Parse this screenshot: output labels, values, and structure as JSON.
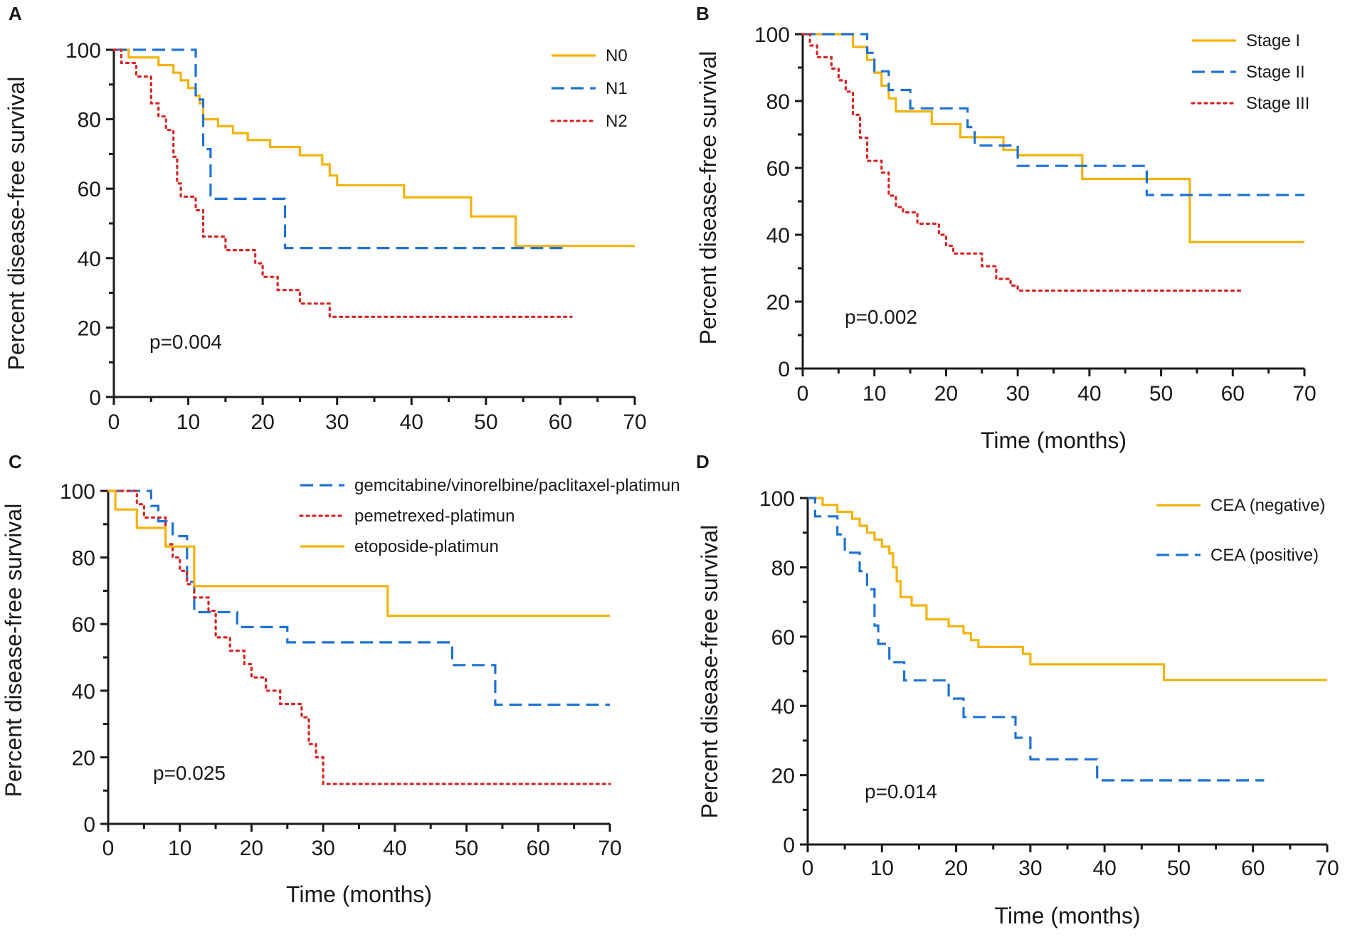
{
  "figure": {
    "panel_letters": [
      "A",
      "B",
      "C",
      "D"
    ]
  },
  "colors": {
    "yellow": "#f5b30a",
    "blue": "#1f73d6",
    "red": "#d92323",
    "axis": "#1a1a1a"
  },
  "chart_data": [
    {
      "panel": "A",
      "type": "line",
      "subtype": "kaplan-meier step",
      "title": "",
      "xlabel": "",
      "ylabel": "Percent disease-free survival",
      "xlim": [
        0,
        70
      ],
      "ylim": [
        0,
        100
      ],
      "xticks": [
        "0",
        "10",
        "20",
        "30",
        "40",
        "50",
        "60",
        "70"
      ],
      "yticks": [
        "0",
        "20",
        "40",
        "60",
        "80",
        "100"
      ],
      "legend_position": "top-right",
      "annotation": "p=0.004",
      "series": [
        {
          "name": "N0",
          "color": "#f5b30a",
          "style": "solid",
          "points": [
            [
              0,
              100
            ],
            [
              2,
              97.8
            ],
            [
              6,
              95.6
            ],
            [
              8,
              93.4
            ],
            [
              9,
              91.2
            ],
            [
              10,
              89
            ],
            [
              11,
              86.8
            ],
            [
              11.5,
              84.6
            ],
            [
              12,
              80
            ],
            [
              14,
              78
            ],
            [
              16,
              76
            ],
            [
              18,
              74
            ],
            [
              21,
              72
            ],
            [
              25,
              69.6
            ],
            [
              28,
              67
            ],
            [
              29,
              63.8
            ],
            [
              30,
              61
            ],
            [
              39,
              57.5
            ],
            [
              48,
              52
            ],
            [
              54,
              43.5
            ],
            [
              70,
              43.5
            ]
          ]
        },
        {
          "name": "N1",
          "color": "#1f73d6",
          "style": "dashed",
          "points": [
            [
              0,
              100
            ],
            [
              10,
              100
            ],
            [
              11,
              85.7
            ],
            [
              12,
              71.4
            ],
            [
              13,
              57.1
            ],
            [
              23,
              42.9
            ],
            [
              61,
              42.9
            ]
          ]
        },
        {
          "name": "N2",
          "color": "#d92323",
          "style": "dotted",
          "points": [
            [
              0,
              100
            ],
            [
              1,
              96.2
            ],
            [
              3,
              92.3
            ],
            [
              5,
              84.6
            ],
            [
              6,
              80.8
            ],
            [
              7,
              76.9
            ],
            [
              8,
              69.2
            ],
            [
              8.5,
              61.5
            ],
            [
              9,
              57.7
            ],
            [
              11,
              53.8
            ],
            [
              12,
              46.2
            ],
            [
              15,
              42.3
            ],
            [
              19,
              38.5
            ],
            [
              20,
              34.6
            ],
            [
              22,
              30.8
            ],
            [
              25,
              26.9
            ],
            [
              29,
              23.1
            ],
            [
              61.5,
              23.1
            ]
          ]
        }
      ]
    },
    {
      "panel": "B",
      "type": "line",
      "subtype": "kaplan-meier step",
      "title": "",
      "xlabel": "Time (months)",
      "ylabel": "Percent disease-free survival",
      "xlim": [
        0,
        70
      ],
      "ylim": [
        0,
        100
      ],
      "xticks": [
        "0",
        "10",
        "20",
        "30",
        "40",
        "50",
        "60",
        "70"
      ],
      "yticks": [
        "0",
        "20",
        "40",
        "60",
        "80",
        "100"
      ],
      "legend_position": "top-right",
      "annotation": "p=0.002",
      "series": [
        {
          "name": "Stage I",
          "color": "#f5b30a",
          "style": "solid",
          "points": [
            [
              0,
              100
            ],
            [
              7,
              96.2
            ],
            [
              9,
              92.3
            ],
            [
              10,
              88.5
            ],
            [
              11,
              84.6
            ],
            [
              12,
              80.8
            ],
            [
              13,
              76.9
            ],
            [
              18,
              73.1
            ],
            [
              22,
              69.2
            ],
            [
              28,
              65.4
            ],
            [
              30,
              63.8
            ],
            [
              39,
              56.7
            ],
            [
              54,
              37.8
            ],
            [
              70,
              37.8
            ]
          ]
        },
        {
          "name": "Stage II",
          "color": "#1f73d6",
          "style": "dashed",
          "points": [
            [
              0,
              100
            ],
            [
              9,
              94.4
            ],
            [
              10,
              88.9
            ],
            [
              12,
              83.3
            ],
            [
              15,
              77.8
            ],
            [
              23,
              72.2
            ],
            [
              24,
              66.7
            ],
            [
              30,
              60.6
            ],
            [
              48,
              51.9
            ],
            [
              70,
              51.9
            ]
          ]
        },
        {
          "name": "Stage III",
          "color": "#d92323",
          "style": "dotted",
          "points": [
            [
              0,
              100
            ],
            [
              1,
              96.6
            ],
            [
              2,
              93.1
            ],
            [
              4,
              89.7
            ],
            [
              5,
              86.2
            ],
            [
              6,
              82.8
            ],
            [
              7,
              75.9
            ],
            [
              8,
              69
            ],
            [
              9,
              62.1
            ],
            [
              11,
              58.6
            ],
            [
              12,
              51.7
            ],
            [
              13,
              48.3
            ],
            [
              14,
              46.7
            ],
            [
              16,
              43.3
            ],
            [
              19,
              40
            ],
            [
              20,
              36.7
            ],
            [
              21,
              34.4
            ],
            [
              25,
              30.6
            ],
            [
              27,
              26.8
            ],
            [
              29,
              24.8
            ],
            [
              30,
              23.3
            ],
            [
              61.5,
              23.3
            ]
          ]
        }
      ]
    },
    {
      "panel": "C",
      "type": "line",
      "subtype": "kaplan-meier step",
      "title": "",
      "xlabel": "Time (months)",
      "ylabel": "Percent disease-free survival",
      "xlim": [
        0,
        70
      ],
      "ylim": [
        0,
        100
      ],
      "xticks": [
        "0",
        "10",
        "20",
        "30",
        "40",
        "50",
        "60",
        "70"
      ],
      "yticks": [
        "0",
        "20",
        "40",
        "60",
        "80",
        "100"
      ],
      "legend_position": "top-right",
      "annotation": "p=0.025",
      "series": [
        {
          "name": "gemcitabine/vinorelbine/paclitaxel-platimun",
          "color": "#1f73d6",
          "style": "dashed",
          "points": [
            [
              0,
              100
            ],
            [
              6,
              95.5
            ],
            [
              7,
              90.9
            ],
            [
              9,
              86.4
            ],
            [
              11,
              72.7
            ],
            [
              12,
              63.6
            ],
            [
              18,
              59.1
            ],
            [
              25,
              54.5
            ],
            [
              48,
              47.7
            ],
            [
              54,
              35.8
            ],
            [
              70,
              35.8
            ]
          ]
        },
        {
          "name": "pemetrexed-platimun",
          "color": "#d92323",
          "style": "dotted",
          "points": [
            [
              0,
              100
            ],
            [
              4,
              96
            ],
            [
              5,
              92
            ],
            [
              8,
              84
            ],
            [
              9,
              80
            ],
            [
              10,
              76
            ],
            [
              11,
              72
            ],
            [
              12,
              68
            ],
            [
              14,
              64
            ],
            [
              15,
              56
            ],
            [
              17,
              52
            ],
            [
              19,
              48
            ],
            [
              20,
              44
            ],
            [
              22,
              40
            ],
            [
              24,
              36
            ],
            [
              27,
              32
            ],
            [
              28,
              24
            ],
            [
              29,
              20
            ],
            [
              30,
              12
            ],
            [
              70,
              12
            ]
          ]
        },
        {
          "name": "etoposide-platimun",
          "color": "#f5b30a",
          "style": "solid",
          "points": [
            [
              0,
              100
            ],
            [
              1,
              94.4
            ],
            [
              4,
              88.9
            ],
            [
              8,
              83.3
            ],
            [
              12,
              71.4
            ],
            [
              39,
              62.5
            ],
            [
              70,
              62.5
            ]
          ]
        }
      ]
    },
    {
      "panel": "D",
      "type": "line",
      "subtype": "kaplan-meier step",
      "title": "",
      "xlabel": "Time (months)",
      "ylabel": "Percent disease-free survival",
      "xlim": [
        0,
        70
      ],
      "ylim": [
        0,
        100
      ],
      "xticks": [
        "0",
        "10",
        "20",
        "30",
        "40",
        "50",
        "60",
        "70"
      ],
      "yticks": [
        "0",
        "20",
        "40",
        "60",
        "80",
        "100"
      ],
      "legend_position": "top-right",
      "annotation": "p=0.014",
      "series": [
        {
          "name": "CEA (negative)",
          "color": "#f5b30a",
          "style": "solid",
          "points": [
            [
              0,
              100
            ],
            [
              2,
              98
            ],
            [
              4,
              96
            ],
            [
              6,
              94
            ],
            [
              7,
              92
            ],
            [
              8,
              90
            ],
            [
              9,
              88
            ],
            [
              10,
              86
            ],
            [
              11,
              84
            ],
            [
              11.5,
              80
            ],
            [
              12,
              76
            ],
            [
              12.5,
              71.4
            ],
            [
              14,
              69
            ],
            [
              16,
              65
            ],
            [
              19,
              63
            ],
            [
              21,
              61
            ],
            [
              22,
              59
            ],
            [
              23,
              57
            ],
            [
              29,
              55
            ],
            [
              30,
              52
            ],
            [
              48,
              47.5
            ],
            [
              70,
              47.5
            ]
          ]
        },
        {
          "name": "CEA (positive)",
          "color": "#1f73d6",
          "style": "dashed",
          "points": [
            [
              0,
              100
            ],
            [
              1,
              94.7
            ],
            [
              4,
              89.5
            ],
            [
              5,
              84.2
            ],
            [
              7,
              78.9
            ],
            [
              8,
              73.7
            ],
            [
              9,
              63.2
            ],
            [
              9.5,
              57.9
            ],
            [
              11,
              52.6
            ],
            [
              13,
              47.4
            ],
            [
              19,
              42.1
            ],
            [
              21,
              36.8
            ],
            [
              28,
              30.8
            ],
            [
              30,
              24.6
            ],
            [
              39,
              18.5
            ],
            [
              61.5,
              18.5
            ]
          ]
        }
      ]
    }
  ]
}
